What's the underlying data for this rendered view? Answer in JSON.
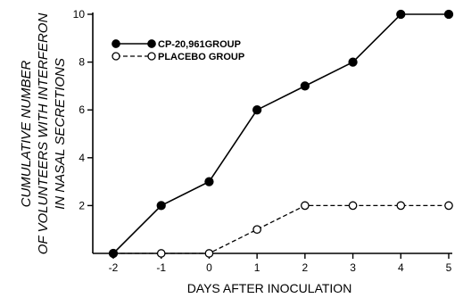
{
  "chart_data": {
    "type": "line",
    "x": [
      -2,
      -1,
      0,
      1,
      2,
      3,
      4,
      5
    ],
    "xlim": [
      -2,
      5
    ],
    "ylim": [
      0,
      10
    ],
    "xticks": [
      "-2",
      "-1",
      "0",
      "1",
      "2",
      "3",
      "4",
      "5"
    ],
    "yticks": [
      "2",
      "4",
      "6",
      "8",
      "10"
    ],
    "xlabel": "DAYS AFTER INOCULATION",
    "ylabel_lines": [
      "CUMULATIVE NUMBER",
      "OF VOLUNTEERS WITH INTERFERON",
      "IN NASAL SECRETIONS"
    ],
    "legend_position": "top-left",
    "series": [
      {
        "name": "CP-20,961GROUP",
        "values": [
          0,
          2,
          3,
          6,
          7,
          8,
          10,
          10
        ],
        "marker": "filled-circle",
        "line": "solid",
        "color": "#000000"
      },
      {
        "name": "PLACEBO GROUP",
        "values": [
          0,
          0,
          0,
          1,
          2,
          2,
          2,
          2
        ],
        "marker": "open-circle",
        "line": "dashed",
        "color": "#000000"
      }
    ]
  }
}
